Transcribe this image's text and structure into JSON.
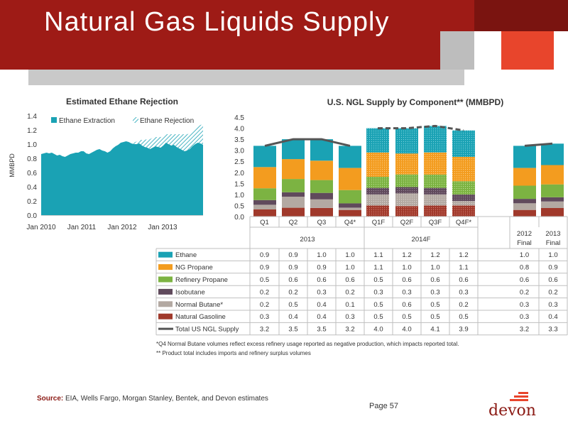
{
  "page": {
    "title": "Natural Gas Liquids Supply",
    "footnote1": "*Q4 Normal Butane volumes reflect excess refinery usage reported as negative production, which impacts reported total.",
    "footnote2": "** Product total includes imports and refinery surplus volumes",
    "source_label": "Source:",
    "source_text": "EIA, Wells Fargo, Morgan Stanley, Bentek, and Devon estimates",
    "page_number": "Page 57",
    "logo_text": "devon"
  },
  "colors": {
    "ethane": "#1aa2b4",
    "ng_propane": "#f39c1f",
    "refinery_propane": "#7cb342",
    "isobutane": "#604a5c",
    "normal_butane": "#b3a9a2",
    "natural_gasoline": "#a0392b",
    "total_line": "#555555",
    "accent_red": "#9e1b16"
  },
  "chart_data": [
    {
      "type": "area",
      "title": "Estimated Ethane Rejection",
      "ylabel": "MMBPD",
      "xlabel": "",
      "ylim": [
        0.0,
        1.4
      ],
      "yticks": [
        "0.0",
        "0.2",
        "0.4",
        "0.6",
        "0.8",
        "1.0",
        "1.2",
        "1.4"
      ],
      "xticks": [
        "Jan 2010",
        "Jan 2011",
        "Jan 2012",
        "Jan 2013"
      ],
      "legend_position": "top",
      "series": [
        {
          "name": "Ethane Extraction",
          "values": [
            0.86,
            0.87,
            0.88,
            0.87,
            0.88,
            0.86,
            0.84,
            0.85,
            0.83,
            0.82,
            0.84,
            0.86,
            0.87,
            0.88,
            0.88,
            0.9,
            0.9,
            0.87,
            0.86,
            0.88,
            0.9,
            0.92,
            0.93,
            0.91,
            0.9,
            0.88,
            0.9,
            0.94,
            0.97,
            0.99,
            1.02,
            1.03,
            1.04,
            1.03,
            1.01,
            1.0,
            1.0,
            1.01,
            0.98,
            0.96,
            0.95,
            0.93,
            0.95,
            0.97,
            0.96,
            0.95,
            0.98,
            1.02,
            1.0,
            0.98,
            0.99,
            0.96,
            0.94,
            0.92,
            0.9,
            0.91,
            0.93,
            0.97,
            1.0,
            1.02,
            1.01,
            0.99
          ]
        },
        {
          "name": "Ethane Rejection",
          "values": [
            0,
            0,
            0,
            0,
            0,
            0,
            0,
            0,
            0,
            0,
            0,
            0,
            0,
            0,
            0,
            0,
            0,
            0,
            0,
            0,
            0,
            0,
            0,
            0,
            0,
            0,
            0,
            0,
            0,
            0,
            0,
            0,
            0,
            0,
            0,
            0.02,
            0.04,
            0.05,
            0.08,
            0.1,
            0.12,
            0.14,
            0.14,
            0.13,
            0.14,
            0.15,
            0.13,
            0.12,
            0.14,
            0.16,
            0.15,
            0.18,
            0.2,
            0.22,
            0.24,
            0.23,
            0.22,
            0.2,
            0.2,
            0.22,
            0.26,
            0.29
          ]
        }
      ]
    },
    {
      "type": "bar",
      "title": "U.S. NGL Supply by Component** (MMBPD)",
      "ylim": [
        0.0,
        4.5
      ],
      "yticks": [
        "0.0",
        "0.5",
        "1.0",
        "1.5",
        "2.0",
        "2.5",
        "3.0",
        "3.5",
        "4.0",
        "4.5"
      ],
      "categories": [
        "Q1",
        "Q2",
        "Q3",
        "Q4*",
        "Q1F",
        "Q2F",
        "Q3F",
        "Q4F*",
        "2012 Final",
        "2013 Final"
      ],
      "category_line1": [
        "Q1",
        "Q2",
        "Q3",
        "Q4*",
        "Q1F",
        "Q2F",
        "Q3F",
        "Q4F*",
        "2012",
        "2013"
      ],
      "category_line2": [
        "",
        "",
        "",
        "",
        "",
        "",
        "",
        "",
        "Final",
        "Final"
      ],
      "group_labels": [
        "2013",
        "2014F"
      ],
      "series": [
        {
          "name": "Ethane",
          "values": [
            "0.9",
            "0.9",
            "1.0",
            "1.0",
            "1.1",
            "1.2",
            "1.2",
            "1.2",
            "1.0",
            "1.0"
          ]
        },
        {
          "name": "NG Propane",
          "values": [
            "0.9",
            "0.9",
            "0.9",
            "1.0",
            "1.1",
            "1.0",
            "1.0",
            "1.1",
            "0.8",
            "0.9"
          ]
        },
        {
          "name": "Refinery Propane",
          "values": [
            "0.5",
            "0.6",
            "0.6",
            "0.6",
            "0.5",
            "0.6",
            "0.6",
            "0.6",
            "0.6",
            "0.6"
          ]
        },
        {
          "name": "Isobutane",
          "values": [
            "0.2",
            "0.2",
            "0.3",
            "0.2",
            "0.3",
            "0.3",
            "0.3",
            "0.3",
            "0.2",
            "0.2"
          ]
        },
        {
          "name": "Normal Butane*",
          "values": [
            "0.2",
            "0.5",
            "0.4",
            "0.1",
            "0.5",
            "0.6",
            "0.5",
            "0.2",
            "0.3",
            "0.3"
          ]
        },
        {
          "name": "Natural Gasoline",
          "values": [
            "0.3",
            "0.4",
            "0.4",
            "0.3",
            "0.5",
            "0.5",
            "0.5",
            "0.5",
            "0.3",
            "0.4"
          ]
        },
        {
          "name": "Total US NGL Supply",
          "values": [
            "3.2",
            "3.5",
            "3.5",
            "3.2",
            "4.0",
            "4.0",
            "4.1",
            "3.9",
            "3.2",
            "3.3"
          ]
        }
      ],
      "forecast_categories": [
        "Q1F",
        "Q2F",
        "Q3F",
        "Q4F*"
      ]
    }
  ]
}
